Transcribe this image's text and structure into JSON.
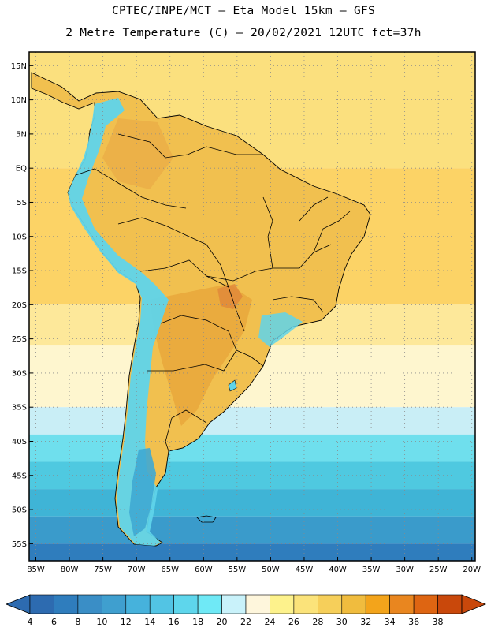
{
  "header": {
    "line1": "CPTEC/INPE/MCT –  Eta Model 15km – GFS",
    "line2": "2 Metre Temperature (C) – 20/02/2021 12UTC fct=37h"
  },
  "map": {
    "lon_range": [
      -86,
      -19.5
    ],
    "lat_range": [
      -57.5,
      17
    ],
    "lat_ticks": [
      {
        "v": 15,
        "t": "15N"
      },
      {
        "v": 10,
        "t": "10N"
      },
      {
        "v": 5,
        "t": "5N"
      },
      {
        "v": 0,
        "t": "EQ"
      },
      {
        "v": -5,
        "t": "5S"
      },
      {
        "v": -10,
        "t": "10S"
      },
      {
        "v": -15,
        "t": "15S"
      },
      {
        "v": -20,
        "t": "20S"
      },
      {
        "v": -25,
        "t": "25S"
      },
      {
        "v": -30,
        "t": "30S"
      },
      {
        "v": -35,
        "t": "35S"
      },
      {
        "v": -40,
        "t": "40S"
      },
      {
        "v": -45,
        "t": "45S"
      },
      {
        "v": -50,
        "t": "50S"
      },
      {
        "v": -55,
        "t": "55S"
      }
    ],
    "lon_ticks": [
      {
        "v": -85,
        "t": "85W"
      },
      {
        "v": -80,
        "t": "80W"
      },
      {
        "v": -75,
        "t": "75W"
      },
      {
        "v": -70,
        "t": "70W"
      },
      {
        "v": -65,
        "t": "65W"
      },
      {
        "v": -60,
        "t": "60W"
      },
      {
        "v": -55,
        "t": "55W"
      },
      {
        "v": -50,
        "t": "50W"
      },
      {
        "v": -45,
        "t": "45W"
      },
      {
        "v": -40,
        "t": "40W"
      },
      {
        "v": -35,
        "t": "35W"
      },
      {
        "v": -30,
        "t": "30W"
      },
      {
        "v": -25,
        "t": "25W"
      },
      {
        "v": -20,
        "t": "20W"
      }
    ],
    "ocean_bands": [
      {
        "lat_top": 17,
        "lat_bot": 0,
        "color": "#fbe07e"
      },
      {
        "lat_top": 0,
        "lat_bot": -20,
        "color": "#fcd366"
      },
      {
        "lat_top": -20,
        "lat_bot": -26,
        "color": "#fde89a"
      },
      {
        "lat_top": -26,
        "lat_bot": -35,
        "color": "#fef6cf"
      },
      {
        "lat_top": -35,
        "lat_bot": -39,
        "color": "#c9eef6"
      },
      {
        "lat_top": -39,
        "lat_bot": -43,
        "color": "#6fdfed"
      },
      {
        "lat_top": -43,
        "lat_bot": -47,
        "color": "#4fc9e0"
      },
      {
        "lat_top": -47,
        "lat_bot": -51,
        "color": "#3fb4d6"
      },
      {
        "lat_top": -51,
        "lat_bot": -55,
        "color": "#3a9bcb"
      },
      {
        "lat_top": -55,
        "lat_bot": -57.5,
        "color": "#2f7dbd"
      }
    ],
    "colors": {
      "land": "#f1c04f",
      "land_warm": "#e8a53a",
      "andes": "#5fd4ea",
      "andes_cold": "#3fa8d3",
      "border": "#000000",
      "grid": "#8a8a8a"
    }
  },
  "colorbar": {
    "labels": [
      "4",
      "6",
      "8",
      "10",
      "12",
      "14",
      "16",
      "18",
      "20",
      "22",
      "24",
      "26",
      "28",
      "30",
      "32",
      "34",
      "36",
      "38"
    ],
    "colors": [
      "#2d6bb0",
      "#2f7dbd",
      "#3a8ec6",
      "#3f9fcf",
      "#46b2dc",
      "#52c4e4",
      "#5ed6ec",
      "#6fe9f6",
      "#c9f2fa",
      "#fef6dc",
      "#fdf28c",
      "#fbe37a",
      "#f6cf5a",
      "#f0bc3e",
      "#f3a41b",
      "#e9861f",
      "#de6512",
      "#c9480b"
    ],
    "left_cap": "#2d6bb0",
    "right_cap": "#c9480b"
  }
}
